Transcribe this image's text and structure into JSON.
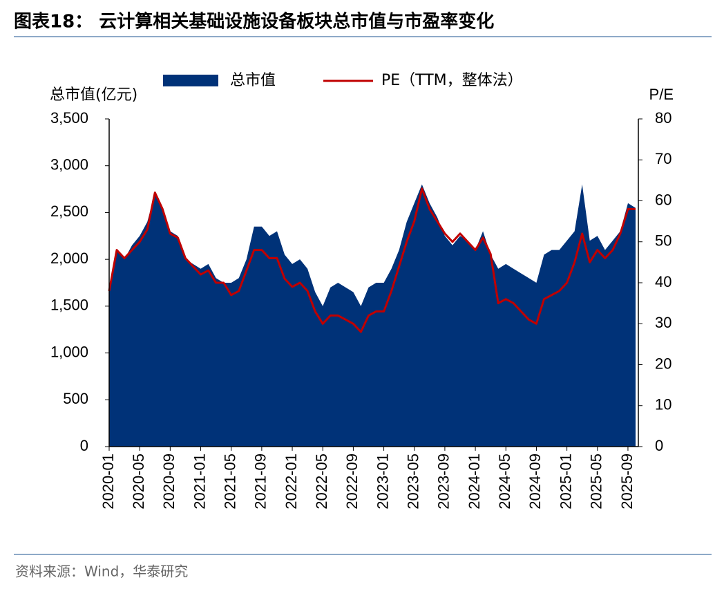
{
  "chart_data": {
    "type": "area-line",
    "title": "图表18：  云计算相关基础设施设备板块总市值与市盈率变化",
    "y_label": "总市值(亿元)",
    "y2_label": "P/E",
    "source": "资料来源：Wind，华泰研究",
    "x": [
      "2020-01",
      "2020-02",
      "2020-03",
      "2020-04",
      "2020-05",
      "2020-06",
      "2020-07",
      "2020-08",
      "2020-09",
      "2020-10",
      "2020-11",
      "2020-12",
      "2021-01",
      "2021-02",
      "2021-03",
      "2021-04",
      "2021-05",
      "2021-06",
      "2021-07",
      "2021-08",
      "2021-09",
      "2021-10",
      "2021-11",
      "2021-12",
      "2022-01",
      "2022-02",
      "2022-03",
      "2022-04",
      "2022-05",
      "2022-06",
      "2022-07",
      "2022-08",
      "2022-09",
      "2022-10",
      "2022-11",
      "2022-12",
      "2023-01",
      "2023-02",
      "2023-03",
      "2023-04",
      "2023-05",
      "2023-06",
      "2023-07",
      "2023-08",
      "2023-09",
      "2023-10",
      "2023-11",
      "2023-12",
      "2024-01",
      "2024-02",
      "2024-03",
      "2024-04",
      "2024-05",
      "2024-06",
      "2024-07",
      "2024-08",
      "2024-09",
      "2024-10",
      "2024-11",
      "2024-12",
      "2025-01",
      "2025-02",
      "2025-03",
      "2025-04",
      "2025-05",
      "2025-06",
      "2025-07",
      "2025-08",
      "2025-09",
      "2025-10"
    ],
    "series": [
      {
        "name": "总市值",
        "color": "#003278",
        "kind": "area",
        "values": [
          1700,
          2100,
          2000,
          2150,
          2250,
          2400,
          2700,
          2550,
          2300,
          2250,
          2000,
          1950,
          1900,
          1950,
          1800,
          1750,
          1750,
          1800,
          2000,
          2350,
          2350,
          2250,
          2300,
          2050,
          1950,
          2000,
          1900,
          1650,
          1500,
          1700,
          1750,
          1700,
          1650,
          1500,
          1700,
          1750,
          1750,
          1900,
          2100,
          2400,
          2600,
          2800,
          2600,
          2450,
          2250,
          2150,
          2250,
          2200,
          2100,
          2300,
          2050,
          1900,
          1950,
          1900,
          1850,
          1800,
          1750,
          2050,
          2100,
          2100,
          2200,
          2300,
          2800,
          2200,
          2250,
          2100,
          2200,
          2300,
          2600,
          2550
        ]
      },
      {
        "name": "PE（TTM，整体法）",
        "color": "#c00000",
        "kind": "line",
        "axis": "y2",
        "values": [
          38,
          48,
          46,
          48,
          50,
          53,
          62,
          58,
          52,
          51,
          46,
          44,
          42,
          43,
          40,
          40,
          37,
          38,
          43,
          48,
          48,
          46,
          46,
          41,
          39,
          40,
          38,
          33,
          30,
          32,
          32,
          31,
          30,
          28,
          32,
          33,
          33,
          38,
          44,
          50,
          55,
          63,
          58,
          55,
          52,
          50,
          52,
          50,
          48,
          51,
          47,
          35,
          36,
          35,
          33,
          31,
          30,
          36,
          37,
          38,
          40,
          45,
          52,
          45,
          48,
          46,
          48,
          52,
          58,
          58
        ]
      }
    ],
    "xticks": [
      "2020-01",
      "2020-05",
      "2020-09",
      "2021-01",
      "2021-05",
      "2021-09",
      "2022-01",
      "2022-05",
      "2022-09",
      "2023-01",
      "2023-05",
      "2023-09",
      "2024-01",
      "2024-05",
      "2024-09",
      "2025-01",
      "2025-05",
      "2025-09"
    ],
    "ylim": [
      0,
      3500
    ],
    "yticks": [
      0,
      500,
      {
        "value": 1000,
        "label": "1,000"
      },
      {
        "value": 1500,
        "label": "1,500"
      },
      {
        "value": 2000,
        "label": "2,000"
      },
      {
        "value": 2500,
        "label": "2,500"
      },
      {
        "value": 3000,
        "label": "3,000"
      },
      {
        "value": 3500,
        "label": "3,500"
      }
    ],
    "y2lim": [
      0,
      80
    ],
    "y2ticks": [
      0,
      10,
      20,
      30,
      40,
      50,
      60,
      70,
      80
    ]
  }
}
